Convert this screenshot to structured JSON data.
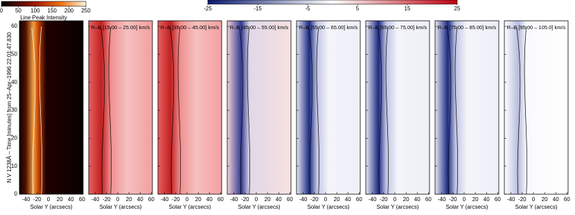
{
  "colorbars": [
    {
      "lim": [
        0,
        250
      ],
      "ticks": [
        0,
        50,
        100,
        150,
        200,
        250
      ],
      "label": "Line Peak Intensity"
    },
    {
      "lim": [
        -25,
        25
      ],
      "ticks": [
        -25,
        -15,
        -5,
        5,
        15,
        25
      ]
    }
  ],
  "ylabel": "N V 1238Å – Time [minutes] from 25–Apr–1996 22:01:47.830",
  "xlabel": "Solar Y (arcsecs)",
  "xlim": [
    -52,
    62
  ],
  "xticks": [
    -40,
    -20,
    0,
    20,
    40,
    60
  ],
  "ylim": [
    0,
    62
  ],
  "yticks": [
    0,
    10,
    20,
    30,
    40,
    50,
    60
  ],
  "panels": [
    {
      "kind": "intensity"
    },
    {
      "kind": "redshift",
      "title": "R–B [15.00 – 25.00] km/s"
    },
    {
      "kind": "redshift",
      "title": "R–B [35.00 – 45.00] km/s"
    },
    {
      "kind": "mixed",
      "title": "R–B [45.00 – 55.00] km/s"
    },
    {
      "kind": "blueshift",
      "title": "R–B [55.00 – 65.00] km/s"
    },
    {
      "kind": "blueshift",
      "title": "R–B [65.00 – 75.00] km/s"
    },
    {
      "kind": "blueshift",
      "title": "R–B [75.00 – 85.00] km/s"
    },
    {
      "kind": "faint",
      "title": "R–B [95.00 – 105.0] km/s"
    }
  ]
}
